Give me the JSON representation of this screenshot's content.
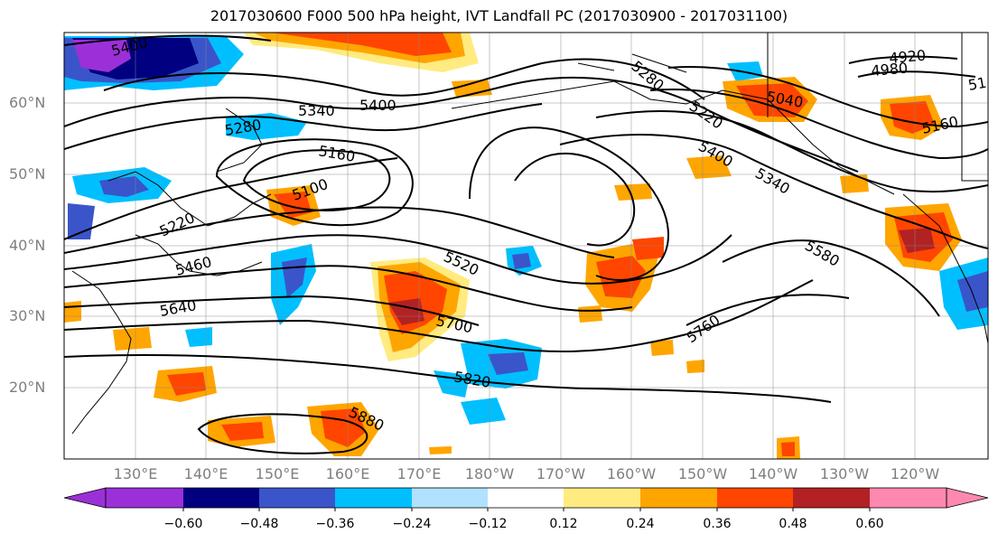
{
  "title": "2017030600 F000 500 hPa height, IVT Landfall PC (2017030900 - 2017031100)",
  "latitude_labels": [
    "60°N",
    "50°N",
    "40°N",
    "30°N",
    "20°N"
  ],
  "longitude_labels": [
    "130°E",
    "140°E",
    "150°E",
    "160°E",
    "170°E",
    "180°W",
    "170°W",
    "160°W",
    "150°W",
    "140°W",
    "130°W",
    "120°W"
  ],
  "colorbar": {
    "tick_labels": [
      "−0.60",
      "−0.48",
      "−0.36",
      "−0.24",
      "−0.12",
      "0.12",
      "0.24",
      "0.36",
      "0.48",
      "0.60"
    ],
    "colors": [
      "#9b30d9",
      "#000080",
      "#3a55c9",
      "#00bfff",
      "#b0e2ff",
      "#ffffff",
      "#ffeb80",
      "#ffa500",
      "#ff4500",
      "#b22222",
      "#ff88b0"
    ]
  },
  "height_contour_labels": [
    "5400",
    "5340",
    "5400",
    "5280",
    "5160",
    "5100",
    "5220",
    "5460",
    "5640",
    "5520",
    "5700",
    "5820",
    "5880",
    "5760",
    "5580",
    "5340",
    "5400",
    "5220",
    "5280",
    "5040",
    "4920",
    "4980",
    "5160",
    "51"
  ]
}
